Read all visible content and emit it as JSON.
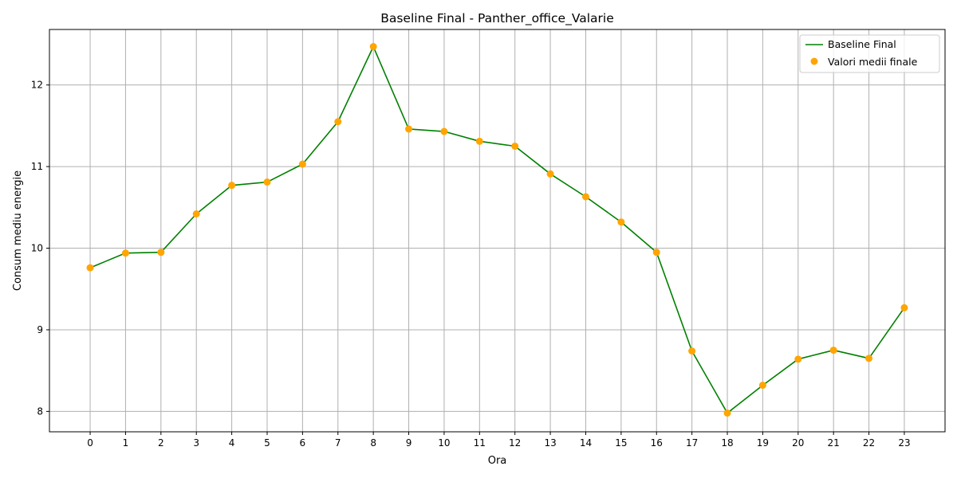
{
  "chart_data": {
    "type": "line",
    "title": "Baseline Final - Panther_office_Valarie",
    "xlabel": "Ora",
    "ylabel": "Consum mediu energie",
    "x": [
      0,
      1,
      2,
      3,
      4,
      5,
      6,
      7,
      8,
      9,
      10,
      11,
      12,
      13,
      14,
      15,
      16,
      17,
      18,
      19,
      20,
      21,
      22,
      23
    ],
    "x_tick_labels": [
      "0",
      "1",
      "2",
      "3",
      "4",
      "5",
      "6",
      "7",
      "8",
      "9",
      "10",
      "11",
      "12",
      "13",
      "14",
      "15",
      "16",
      "17",
      "18",
      "19",
      "20",
      "21",
      "22",
      "23"
    ],
    "y_ticks": [
      8,
      9,
      10,
      11,
      12
    ],
    "y_tick_labels": [
      "8",
      "9",
      "10",
      "11",
      "12"
    ],
    "xlim": [
      -1.15,
      24.15
    ],
    "ylim": [
      7.75,
      12.68
    ],
    "grid": true,
    "legend_position": "top-right",
    "series": [
      {
        "name": "Baseline Final",
        "kind": "line",
        "color": "#008000",
        "values": [
          9.76,
          9.94,
          9.95,
          10.42,
          10.77,
          10.81,
          11.03,
          11.55,
          12.47,
          11.46,
          11.43,
          11.31,
          11.25,
          10.91,
          10.63,
          10.32,
          9.95,
          8.74,
          7.98,
          8.32,
          8.64,
          8.75,
          8.65,
          9.27
        ]
      },
      {
        "name": "Valori medii finale",
        "kind": "scatter",
        "color": "#ffa500",
        "values": [
          9.76,
          9.94,
          9.95,
          10.42,
          10.77,
          10.81,
          11.03,
          11.55,
          12.47,
          11.46,
          11.43,
          11.31,
          11.25,
          10.91,
          10.63,
          10.32,
          9.95,
          8.74,
          7.98,
          8.32,
          8.64,
          8.75,
          8.65,
          9.27
        ]
      }
    ]
  }
}
